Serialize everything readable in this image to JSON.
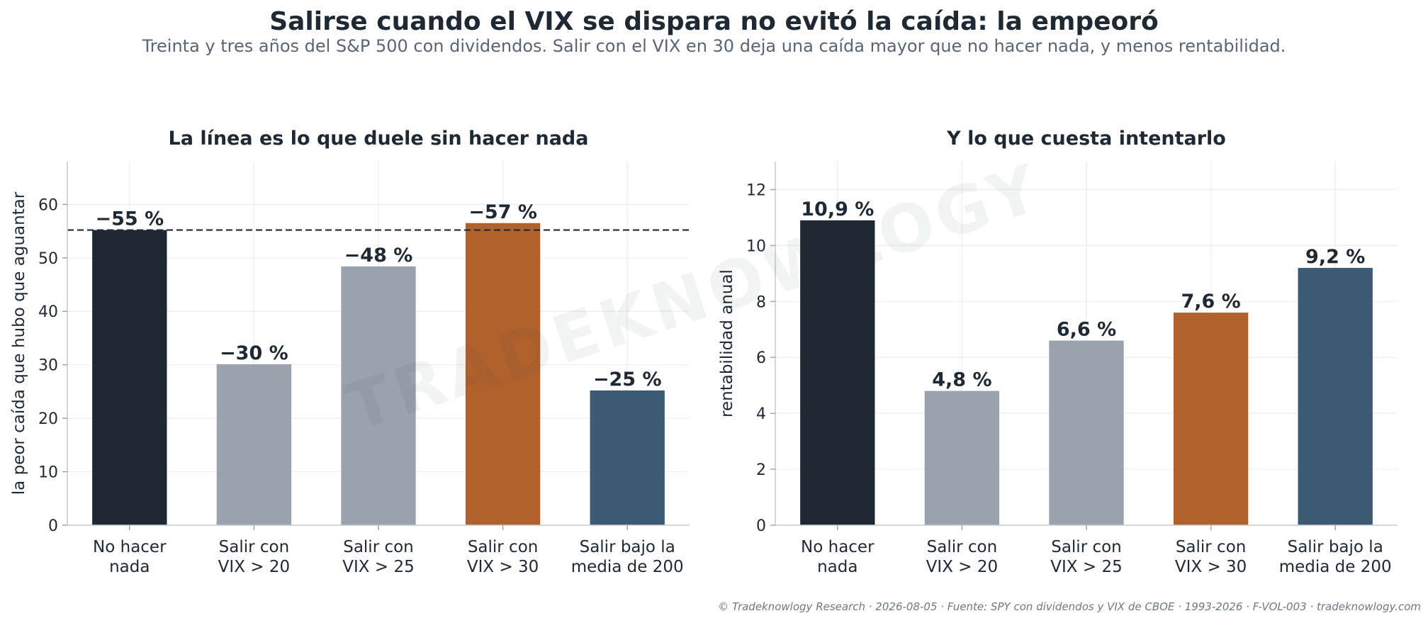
{
  "title": "Salirse cuando el VIX se dispara no evitó la caída: la empeoró",
  "subtitle": "Treinta y tres años del S&P 500 con dividendos. Salir con el VIX en 30 deja una caída mayor que no hacer nada, y menos rentabilidad.",
  "watermark": "TRADEKNOWLOGY",
  "footer": "© Tradeknowlogy Research   ·   2026-08-05   ·   Fuente: SPY con dividendos y VIX de CBOE · 1993-2026 · F-VOL-003   ·   tradeknowlogy.com",
  "chart_data": [
    {
      "type": "bar",
      "title": "La línea es lo que duele sin hacer nada",
      "xlabel": "",
      "ylabel": "la peor caída que hubo que aguantar",
      "categories": [
        "No hacer\nnada",
        "Salir con\nVIX > 20",
        "Salir con\nVIX > 25",
        "Salir con\nVIX > 30",
        "Salir bajo la\nmedia de 200"
      ],
      "values": [
        55.2,
        30.1,
        48.4,
        56.5,
        25.2
      ],
      "data_labels": [
        "−55 %",
        "−30 %",
        "−48 %",
        "−57 %",
        "−25 %"
      ],
      "colors": [
        "#1f2933",
        "#9aa2ad",
        "#9aa2ad",
        "#b0622d",
        "#3d5a73"
      ],
      "ylim": [
        0,
        68
      ],
      "yticks": [
        0,
        10,
        20,
        30,
        40,
        50,
        60
      ],
      "reference_line": 55.2,
      "grid": true
    },
    {
      "type": "bar",
      "title": "Y lo que cuesta intentarlo",
      "xlabel": "",
      "ylabel": "rentabilidad anual",
      "categories": [
        "No hacer\nnada",
        "Salir con\nVIX > 20",
        "Salir con\nVIX > 25",
        "Salir con\nVIX > 30",
        "Salir bajo la\nmedia de 200"
      ],
      "values": [
        10.9,
        4.8,
        6.6,
        7.6,
        9.2
      ],
      "data_labels": [
        "10,9 %",
        "4,8 %",
        "6,6 %",
        "7,6 %",
        "9,2 %"
      ],
      "colors": [
        "#1f2933",
        "#9aa2ad",
        "#9aa2ad",
        "#b0622d",
        "#3d5a73"
      ],
      "ylim": [
        0,
        13
      ],
      "yticks": [
        0,
        2,
        4,
        6,
        8,
        10,
        12
      ],
      "grid": true
    }
  ]
}
